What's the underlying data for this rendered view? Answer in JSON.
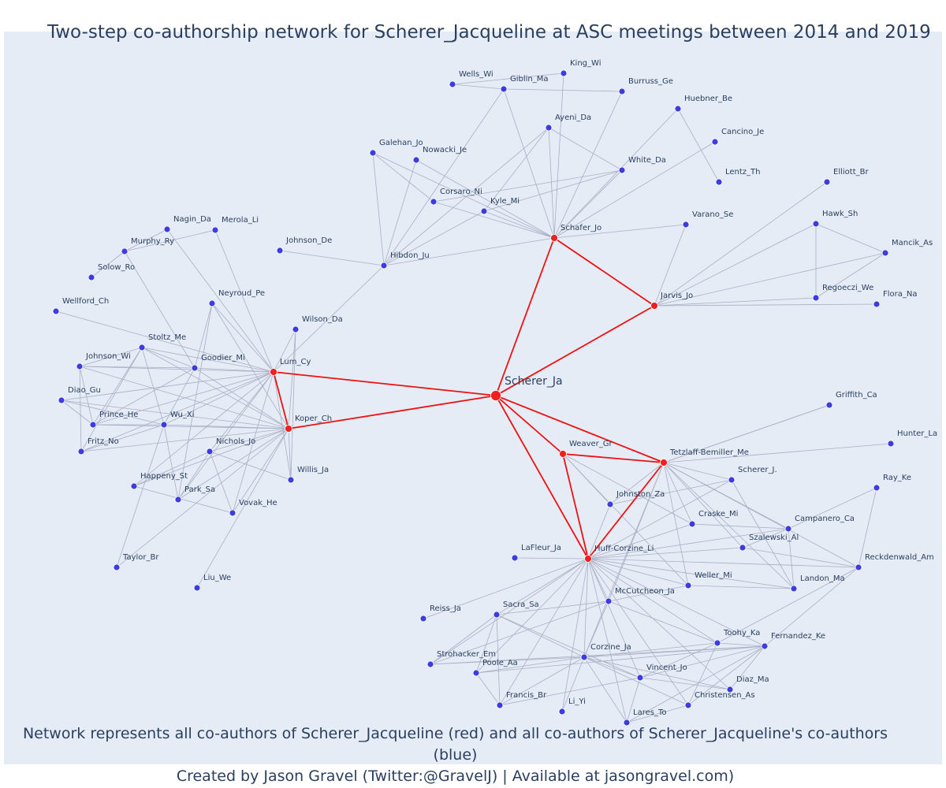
{
  "title": "Two-step co-authorship network for Scherer_Jacqueline at ASC meetings between 2014 and 2019",
  "footer": {
    "line1": "Network represents all co-authors of Scherer_Jacqueline (red) and all co-authors of Scherer_Jacqueline's co-authors (blue)",
    "line2": "Created by Jason Gravel (Twitter:@GravelJ) | Available at jasongravel.com)"
  },
  "colors": {
    "plot_background": "#e5ecf6",
    "coauthor_node": "#ef2020",
    "second_step_node": "#3c3ce0",
    "coauthor_edge": "#ee1111",
    "other_edge": "#a9afc3",
    "text": "#2a3f5f"
  },
  "network": {
    "center": "Scherer_Ja",
    "nodes": [
      {
        "id": "Scherer_Ja",
        "group": "center"
      },
      {
        "id": "Lum_Cy",
        "group": "coauthor"
      },
      {
        "id": "Koper_Ch",
        "group": "coauthor"
      },
      {
        "id": "Schafer_Jo",
        "group": "coauthor"
      },
      {
        "id": "Jarvis_Jo",
        "group": "coauthor"
      },
      {
        "id": "Weaver_Gr",
        "group": "coauthor"
      },
      {
        "id": "Tetzlaff-Bemiller_Me",
        "group": "coauthor"
      },
      {
        "id": "Huff-Corzine_Li",
        "group": "coauthor"
      },
      {
        "id": "King_Wi",
        "group": "second"
      },
      {
        "id": "Wells_Wi",
        "group": "second"
      },
      {
        "id": "Giblin_Ma",
        "group": "second"
      },
      {
        "id": "Burruss_Ge",
        "group": "second"
      },
      {
        "id": "Huebner_Be",
        "group": "second"
      },
      {
        "id": "Ayeni_Da",
        "group": "second"
      },
      {
        "id": "Cancino_Je",
        "group": "second"
      },
      {
        "id": "Galehan_Jo",
        "group": "second"
      },
      {
        "id": "Nowacki_Je",
        "group": "second"
      },
      {
        "id": "White_Da",
        "group": "second"
      },
      {
        "id": "Lentz_Th",
        "group": "second"
      },
      {
        "id": "Elliott_Br",
        "group": "second"
      },
      {
        "id": "Corsaro_Ni",
        "group": "second"
      },
      {
        "id": "Kyle_Mi",
        "group": "second"
      },
      {
        "id": "Hawk_Sh",
        "group": "second"
      },
      {
        "id": "Varano_Se",
        "group": "second"
      },
      {
        "id": "Mancik_As",
        "group": "second"
      },
      {
        "id": "Nagin_Da",
        "group": "second"
      },
      {
        "id": "Merola_Li",
        "group": "second"
      },
      {
        "id": "Murphy_Ry",
        "group": "second"
      },
      {
        "id": "Johnson_De",
        "group": "second"
      },
      {
        "id": "Hibdon_Ju",
        "group": "second"
      },
      {
        "id": "Solow_Ro",
        "group": "second"
      },
      {
        "id": "Regoeczi_We",
        "group": "second"
      },
      {
        "id": "Flora_Na",
        "group": "second"
      },
      {
        "id": "Neyroud_Pe",
        "group": "second"
      },
      {
        "id": "Wellford_Ch",
        "group": "second"
      },
      {
        "id": "Wilson_Da",
        "group": "second"
      },
      {
        "id": "Stoltz_Me",
        "group": "second"
      },
      {
        "id": "Johnson_Wi",
        "group": "second"
      },
      {
        "id": "Goodier_Mi",
        "group": "second"
      },
      {
        "id": "Diao_Gu",
        "group": "second"
      },
      {
        "id": "Griffith_Ca",
        "group": "second"
      },
      {
        "id": "Prince_He",
        "group": "second"
      },
      {
        "id": "Wu_Xi",
        "group": "second"
      },
      {
        "id": "Hunter_La",
        "group": "second"
      },
      {
        "id": "Fritz_No",
        "group": "second"
      },
      {
        "id": "Nichols_Jo",
        "group": "second"
      },
      {
        "id": "Scherer_J.",
        "group": "second"
      },
      {
        "id": "Willis_Ja",
        "group": "second"
      },
      {
        "id": "Ray_Ke",
        "group": "second"
      },
      {
        "id": "Happeny_St",
        "group": "second"
      },
      {
        "id": "Park_Sa",
        "group": "second"
      },
      {
        "id": "Johnston_Za",
        "group": "second"
      },
      {
        "id": "Vovak_He",
        "group": "second"
      },
      {
        "id": "Craske_Mi",
        "group": "second"
      },
      {
        "id": "Campanero_Ca",
        "group": "second"
      },
      {
        "id": "Szalewski_Al",
        "group": "second"
      },
      {
        "id": "LaFleur_Ja",
        "group": "second"
      },
      {
        "id": "Taylor_Br",
        "group": "second"
      },
      {
        "id": "Reckdenwald_Am",
        "group": "second"
      },
      {
        "id": "Weller_Mi",
        "group": "second"
      },
      {
        "id": "Liu_We",
        "group": "second"
      },
      {
        "id": "Landon_Ma",
        "group": "second"
      },
      {
        "id": "McCutcheon_Ja",
        "group": "second"
      },
      {
        "id": "Reiss_Ja",
        "group": "second"
      },
      {
        "id": "Sacra_Sa",
        "group": "second"
      },
      {
        "id": "Toohy_Ka",
        "group": "second"
      },
      {
        "id": "Fernandez_Ke",
        "group": "second"
      },
      {
        "id": "Strohacker_Em",
        "group": "second"
      },
      {
        "id": "Corzine_Ja",
        "group": "second"
      },
      {
        "id": "Poole_Aa",
        "group": "second"
      },
      {
        "id": "Vincent_Jo",
        "group": "second"
      },
      {
        "id": "Diaz_Ma",
        "group": "second"
      },
      {
        "id": "Francis_Br",
        "group": "second"
      },
      {
        "id": "Christensen_As",
        "group": "second"
      },
      {
        "id": "Li_Yi",
        "group": "second"
      },
      {
        "id": "Lares_To",
        "group": "second"
      }
    ],
    "edges": [
      [
        "Scherer_Ja",
        "Lum_Cy"
      ],
      [
        "Scherer_Ja",
        "Koper_Ch"
      ],
      [
        "Scherer_Ja",
        "Schafer_Jo"
      ],
      [
        "Scherer_Ja",
        "Jarvis_Jo"
      ],
      [
        "Scherer_Ja",
        "Weaver_Gr"
      ],
      [
        "Scherer_Ja",
        "Tetzlaff-Bemiller_Me"
      ],
      [
        "Scherer_Ja",
        "Huff-Corzine_Li"
      ],
      [
        "Lum_Cy",
        "Koper_Ch"
      ],
      [
        "Schafer_Jo",
        "Jarvis_Jo"
      ],
      [
        "Weaver_Gr",
        "Tetzlaff-Bemiller_Me"
      ],
      [
        "Weaver_Gr",
        "Huff-Corzine_Li"
      ],
      [
        "Tetzlaff-Bemiller_Me",
        "Huff-Corzine_Li"
      ],
      [
        "Schafer_Jo",
        "King_Wi"
      ],
      [
        "Schafer_Jo",
        "Giblin_Ma"
      ],
      [
        "Schafer_Jo",
        "Burruss_Ge"
      ],
      [
        "Schafer_Jo",
        "Huebner_Be"
      ],
      [
        "Schafer_Jo",
        "Ayeni_Da"
      ],
      [
        "Schafer_Jo",
        "Cancino_Je"
      ],
      [
        "Schafer_Jo",
        "Galehan_Jo"
      ],
      [
        "Schafer_Jo",
        "Nowacki_Je"
      ],
      [
        "Schafer_Jo",
        "White_Da"
      ],
      [
        "Schafer_Jo",
        "Corsaro_Ni"
      ],
      [
        "Schafer_Jo",
        "Kyle_Mi"
      ],
      [
        "Schafer_Jo",
        "Varano_Se"
      ],
      [
        "Schafer_Jo",
        "Hibdon_Ju"
      ],
      [
        "Wells_Wi",
        "King_Wi"
      ],
      [
        "Wells_Wi",
        "Giblin_Ma"
      ],
      [
        "Giblin_Ma",
        "Burruss_Ge"
      ],
      [
        "Giblin_Ma",
        "Hibdon_Ju"
      ],
      [
        "Huebner_Be",
        "Lentz_Th"
      ],
      [
        "Ayeni_Da",
        "White_Da"
      ],
      [
        "Ayeni_Da",
        "Kyle_Mi"
      ],
      [
        "Ayeni_Da",
        "Hibdon_Ju"
      ],
      [
        "Galehan_Jo",
        "Corsaro_Ni"
      ],
      [
        "Galehan_Jo",
        "Hibdon_Ju"
      ],
      [
        "Nowacki_Je",
        "Hibdon_Ju"
      ],
      [
        "Corsaro_Ni",
        "White_Da"
      ],
      [
        "Kyle_Mi",
        "White_Da"
      ],
      [
        "Kyle_Mi",
        "Hibdon_Ju"
      ],
      [
        "Hibdon_Ju",
        "Johnson_De"
      ],
      [
        "Hibdon_Ju",
        "Lum_Cy"
      ],
      [
        "Jarvis_Jo",
        "Varano_Se"
      ],
      [
        "Jarvis_Jo",
        "Elliott_Br"
      ],
      [
        "Jarvis_Jo",
        "Hawk_Sh"
      ],
      [
        "Jarvis_Jo",
        "Mancik_As"
      ],
      [
        "Jarvis_Jo",
        "Regoeczi_We"
      ],
      [
        "Jarvis_Jo",
        "Flora_Na"
      ],
      [
        "Hawk_Sh",
        "Mancik_As"
      ],
      [
        "Hawk_Sh",
        "Regoeczi_We"
      ],
      [
        "Regoeczi_We",
        "Mancik_As"
      ],
      [
        "Lum_Cy",
        "Nagin_Da"
      ],
      [
        "Lum_Cy",
        "Merola_Li"
      ],
      [
        "Lum_Cy",
        "Neyroud_Pe"
      ],
      [
        "Lum_Cy",
        "Wilson_Da"
      ],
      [
        "Lum_Cy",
        "Stoltz_Me"
      ],
      [
        "Lum_Cy",
        "Johnson_Wi"
      ],
      [
        "Lum_Cy",
        "Goodier_Mi"
      ],
      [
        "Lum_Cy",
        "Diao_Gu"
      ],
      [
        "Lum_Cy",
        "Prince_He"
      ],
      [
        "Lum_Cy",
        "Wu_Xi"
      ],
      [
        "Lum_Cy",
        "Fritz_No"
      ],
      [
        "Lum_Cy",
        "Nichols_Jo"
      ],
      [
        "Lum_Cy",
        "Happeny_St"
      ],
      [
        "Lum_Cy",
        "Park_Sa"
      ],
      [
        "Lum_Cy",
        "Vovak_He"
      ],
      [
        "Lum_Cy",
        "Wellford_Ch"
      ],
      [
        "Lum_Cy",
        "Willis_Ja"
      ],
      [
        "Koper_Ch",
        "Neyroud_Pe"
      ],
      [
        "Koper_Ch",
        "Wilson_Da"
      ],
      [
        "Koper_Ch",
        "Stoltz_Me"
      ],
      [
        "Koper_Ch",
        "Johnson_Wi"
      ],
      [
        "Koper_Ch",
        "Goodier_Mi"
      ],
      [
        "Koper_Ch",
        "Diao_Gu"
      ],
      [
        "Koper_Ch",
        "Prince_He"
      ],
      [
        "Koper_Ch",
        "Wu_Xi"
      ],
      [
        "Koper_Ch",
        "Fritz_No"
      ],
      [
        "Koper_Ch",
        "Nichols_Jo"
      ],
      [
        "Koper_Ch",
        "Happeny_St"
      ],
      [
        "Koper_Ch",
        "Park_Sa"
      ],
      [
        "Koper_Ch",
        "Vovak_He"
      ],
      [
        "Koper_Ch",
        "Willis_Ja"
      ],
      [
        "Koper_Ch",
        "Taylor_Br"
      ],
      [
        "Koper_Ch",
        "Liu_We"
      ],
      [
        "Murphy_Ry",
        "Nagin_Da"
      ],
      [
        "Murphy_Ry",
        "Merola_Li"
      ],
      [
        "Murphy_Ry",
        "Solow_Ro"
      ],
      [
        "Murphy_Ry",
        "Goodier_Mi"
      ],
      [
        "Wilson_Da",
        "Willis_Ja"
      ],
      [
        "Stoltz_Me",
        "Johnson_Wi"
      ],
      [
        "Stoltz_Me",
        "Goodier_Mi"
      ],
      [
        "Stoltz_Me",
        "Prince_He"
      ],
      [
        "Stoltz_Me",
        "Fritz_No"
      ],
      [
        "Stoltz_Me",
        "Wu_Xi"
      ],
      [
        "Johnson_Wi",
        "Goodier_Mi"
      ],
      [
        "Johnson_Wi",
        "Prince_He"
      ],
      [
        "Johnson_Wi",
        "Fritz_No"
      ],
      [
        "Diao_Gu",
        "Prince_He"
      ],
      [
        "Diao_Gu",
        "Wu_Xi"
      ],
      [
        "Prince_He",
        "Wu_Xi"
      ],
      [
        "Fritz_No",
        "Wu_Xi"
      ],
      [
        "Goodier_Mi",
        "Wu_Xi"
      ],
      [
        "Goodier_Mi",
        "Prince_He"
      ],
      [
        "Neyroud_Pe",
        "Goodier_Mi"
      ],
      [
        "Neyroud_Pe",
        "Park_Sa"
      ],
      [
        "Nichols_Jo",
        "Happeny_St"
      ],
      [
        "Nichols_Jo",
        "Park_Sa"
      ],
      [
        "Nichols_Jo",
        "Vovak_He"
      ],
      [
        "Nichols_Jo",
        "Willis_Ja"
      ],
      [
        "Happeny_St",
        "Vovak_He"
      ],
      [
        "Park_Sa",
        "Wu_Xi"
      ],
      [
        "Taylor_Br",
        "Wu_Xi"
      ],
      [
        "Tetzlaff-Bemiller_Me",
        "Griffith_Ca"
      ],
      [
        "Tetzlaff-Bemiller_Me",
        "Hunter_La"
      ],
      [
        "Tetzlaff-Bemiller_Me",
        "Scherer_J."
      ],
      [
        "Tetzlaff-Bemiller_Me",
        "Johnston_Za"
      ],
      [
        "Tetzlaff-Bemiller_Me",
        "Craske_Mi"
      ],
      [
        "Tetzlaff-Bemiller_Me",
        "Campanero_Ca"
      ],
      [
        "Tetzlaff-Bemiller_Me",
        "Szalewski_Al"
      ],
      [
        "Tetzlaff-Bemiller_Me",
        "Weller_Mi"
      ],
      [
        "Tetzlaff-Bemiller_Me",
        "Landon_Ma"
      ],
      [
        "Tetzlaff-Bemiller_Me",
        "McCutcheon_Ja"
      ],
      [
        "Tetzlaff-Bemiller_Me",
        "Reckdenwald_Am"
      ],
      [
        "Tetzlaff-Bemiller_Me",
        "Corzine_Ja"
      ],
      [
        "Weaver_Gr",
        "Johnston_Za"
      ],
      [
        "Weaver_Gr",
        "Craske_Mi"
      ],
      [
        "Weaver_Gr",
        "Weller_Mi"
      ],
      [
        "Huff-Corzine_Li",
        "LaFleur_Ja"
      ],
      [
        "Huff-Corzine_Li",
        "Johnston_Za"
      ],
      [
        "Huff-Corzine_Li",
        "Scherer_J."
      ],
      [
        "Huff-Corzine_Li",
        "Craske_Mi"
      ],
      [
        "Huff-Corzine_Li",
        "Campanero_Ca"
      ],
      [
        "Huff-Corzine_Li",
        "Szalewski_Al"
      ],
      [
        "Huff-Corzine_Li",
        "Weller_Mi"
      ],
      [
        "Huff-Corzine_Li",
        "Landon_Ma"
      ],
      [
        "Huff-Corzine_Li",
        "McCutcheon_Ja"
      ],
      [
        "Huff-Corzine_Li",
        "Reiss_Ja"
      ],
      [
        "Huff-Corzine_Li",
        "Sacra_Sa"
      ],
      [
        "Huff-Corzine_Li",
        "Toohy_Ka"
      ],
      [
        "Huff-Corzine_Li",
        "Fernandez_Ke"
      ],
      [
        "Huff-Corzine_Li",
        "Strohacker_Em"
      ],
      [
        "Huff-Corzine_Li",
        "Corzine_Ja"
      ],
      [
        "Huff-Corzine_Li",
        "Poole_Aa"
      ],
      [
        "Huff-Corzine_Li",
        "Vincent_Jo"
      ],
      [
        "Huff-Corzine_Li",
        "Diaz_Ma"
      ],
      [
        "Huff-Corzine_Li",
        "Francis_Br"
      ],
      [
        "Huff-Corzine_Li",
        "Christensen_As"
      ],
      [
        "Huff-Corzine_Li",
        "Li_Yi"
      ],
      [
        "Huff-Corzine_Li",
        "Lares_To"
      ],
      [
        "Huff-Corzine_Li",
        "Reckdenwald_Am"
      ],
      [
        "Ray_Ke",
        "Campanero_Ca"
      ],
      [
        "Ray_Ke",
        "Reckdenwald_Am"
      ],
      [
        "Scherer_J.",
        "Johnston_Za"
      ],
      [
        "Scherer_J.",
        "Landon_Ma"
      ],
      [
        "Campanero_Ca",
        "Szalewski_Al"
      ],
      [
        "Campanero_Ca",
        "Landon_Ma"
      ],
      [
        "Campanero_Ca",
        "Craske_Mi"
      ],
      [
        "Szalewski_Al",
        "Reckdenwald_Am"
      ],
      [
        "Weller_Mi",
        "Landon_Ma"
      ],
      [
        "Weller_Mi",
        "McCutcheon_Ja"
      ],
      [
        "Reckdenwald_Am",
        "Toohy_Ka"
      ],
      [
        "Reckdenwald_Am",
        "Fernandez_Ke"
      ],
      [
        "McCutcheon_Ja",
        "Sacra_Sa"
      ],
      [
        "McCutcheon_Ja",
        "Corzine_Ja"
      ],
      [
        "McCutcheon_Ja",
        "Toohy_Ka"
      ],
      [
        "McCutcheon_Ja",
        "Strohacker_Em"
      ],
      [
        "Sacra_Sa",
        "Corzine_Ja"
      ],
      [
        "Sacra_Sa",
        "Strohacker_Em"
      ],
      [
        "Sacra_Sa",
        "Poole_Aa"
      ],
      [
        "Sacra_Sa",
        "Francis_Br"
      ],
      [
        "Sacra_Sa",
        "Vincent_Jo"
      ],
      [
        "Corzine_Ja",
        "Strohacker_Em"
      ],
      [
        "Corzine_Ja",
        "Poole_Aa"
      ],
      [
        "Corzine_Ja",
        "Vincent_Jo"
      ],
      [
        "Corzine_Ja",
        "Francis_Br"
      ],
      [
        "Corzine_Ja",
        "Li_Yi"
      ],
      [
        "Corzine_Ja",
        "Lares_To"
      ],
      [
        "Corzine_Ja",
        "Toohy_Ka"
      ],
      [
        "Corzine_Ja",
        "Fernandez_Ke"
      ],
      [
        "Corzine_Ja",
        "Christensen_As"
      ],
      [
        "Corzine_Ja",
        "Diaz_Ma"
      ],
      [
        "Vincent_Jo",
        "Fernandez_Ke"
      ],
      [
        "Vincent_Jo",
        "Toohy_Ka"
      ],
      [
        "Vincent_Jo",
        "Lares_To"
      ],
      [
        "Vincent_Jo",
        "Diaz_Ma"
      ],
      [
        "Vincent_Jo",
        "Francis_Br"
      ],
      [
        "Toohy_Ka",
        "Fernandez_Ke"
      ],
      [
        "Toohy_Ka",
        "Christensen_As"
      ],
      [
        "Fernandez_Ke",
        "Diaz_Ma"
      ],
      [
        "Fernandez_Ke",
        "Christensen_As"
      ],
      [
        "Fernandez_Ke",
        "Lares_To"
      ],
      [
        "Fernandez_Ke",
        "Poole_Aa"
      ],
      [
        "Fernandez_Ke",
        "Strohacker_Em"
      ],
      [
        "Francis_Br",
        "Poole_Aa"
      ],
      [
        "Lares_To",
        "Christensen_As"
      ],
      [
        "Griffith_Ca",
        "Tetzlaff-Bemiller_Me"
      ]
    ]
  }
}
